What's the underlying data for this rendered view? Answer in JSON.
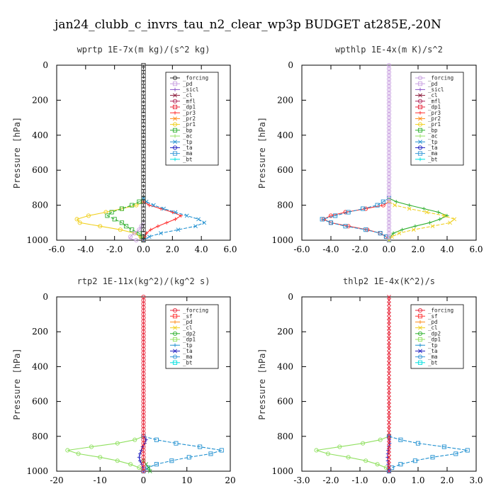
{
  "title": "jan24_clubb_c_invrs_tau_n2_clear_wp3p  BUDGET at285E,-20N",
  "chart_data": [
    {
      "type": "line",
      "title": "wprtp  1E-7x(m kg)/(s^2 kg)",
      "ylabel": "Pressure [hPa]",
      "xlim": [
        -6.0,
        6.0
      ],
      "ylim": [
        1000,
        0
      ],
      "xticks": [
        "-6.0",
        "-4.0",
        "-2.0",
        "0.0",
        "2.0",
        "4.0",
        "6.0"
      ],
      "xtick_values": [
        -6,
        -4,
        -2,
        0,
        2,
        4,
        6
      ],
      "yticks": [
        "0",
        "200",
        "400",
        "600",
        "800",
        "1000"
      ],
      "ytick_values": [
        0,
        200,
        400,
        600,
        800,
        1000
      ],
      "legend": [
        "_forcing",
        "_pd",
        "_sicl",
        "_cl",
        "_mfl",
        "_dp1",
        "_pr3",
        "_pr2",
        "_pr1",
        "_bp",
        "_ac",
        "_tp",
        "_ta",
        "_ma",
        "_bt"
      ],
      "legend_colors": [
        "#333333",
        "#c8a0e0",
        "#8a55c8",
        "#8a1a3a",
        "#b0285a",
        "#e8283c",
        "#ff3030",
        "#ff8c1a",
        "#f0d020",
        "#30b030",
        "#90e060",
        "#2090d0",
        "#2020c0",
        "#3a9ad8",
        "#00e0e0"
      ],
      "series": [
        {
          "color": "#f0d020",
          "pressure": [
            780,
            800,
            820,
            840,
            860,
            880,
            900,
            920,
            940,
            960,
            980,
            1000
          ],
          "x": [
            0.0,
            -0.5,
            -1.5,
            -2.6,
            -3.8,
            -4.6,
            -4.4,
            -3.0,
            -1.6,
            -0.6,
            -0.2,
            0.0
          ]
        },
        {
          "color": "#30b030",
          "pressure": [
            760,
            780,
            800,
            820,
            840,
            860,
            880,
            900,
            920,
            940,
            960,
            980,
            1000
          ],
          "x": [
            0.0,
            -0.3,
            -0.8,
            -1.5,
            -2.2,
            -2.5,
            -2.0,
            -1.5,
            -1.2,
            -0.8,
            -0.3,
            -0.1,
            0.0
          ]
        },
        {
          "color": "#ff3030",
          "pressure": [
            780,
            800,
            820,
            840,
            860,
            880,
            900,
            920,
            940,
            960,
            980,
            1000
          ],
          "x": [
            0.0,
            0.4,
            1.2,
            2.0,
            2.6,
            2.2,
            1.6,
            1.0,
            0.5,
            0.2,
            0.1,
            0.0
          ]
        },
        {
          "color": "#2090d0",
          "pressure": [
            760,
            780,
            800,
            820,
            840,
            860,
            880,
            900,
            920,
            940,
            960,
            980,
            1000
          ],
          "x": [
            0.0,
            0.2,
            0.7,
            1.4,
            2.2,
            3.0,
            3.8,
            4.2,
            3.6,
            2.4,
            1.2,
            0.4,
            0.0
          ]
        },
        {
          "color": "#c8a0e0",
          "pressure": [
            900,
            940,
            970,
            990,
            1000
          ],
          "x": [
            0.0,
            -0.3,
            -0.8,
            -1.0,
            -0.5
          ]
        },
        {
          "color": "#333333",
          "pressure": [
            0,
            100,
            200,
            300,
            400,
            500,
            600,
            700,
            800,
            900,
            1000
          ],
          "x": [
            0,
            0,
            0,
            0,
            0,
            0,
            0,
            0,
            0,
            0,
            0
          ]
        }
      ]
    },
    {
      "type": "line",
      "title": "wpthlp  1E-4x(m K)/s^2",
      "ylabel": "Pressure [hPa]",
      "xlim": [
        -6.0,
        6.0
      ],
      "ylim": [
        1000,
        0
      ],
      "xticks": [
        "-6.0",
        "-4.0",
        "-2.0",
        "0.0",
        "2.0",
        "4.0",
        "6.0"
      ],
      "xtick_values": [
        -6,
        -4,
        -2,
        0,
        2,
        4,
        6
      ],
      "yticks": [
        "0",
        "200",
        "400",
        "600",
        "800",
        "1000"
      ],
      "ytick_values": [
        0,
        200,
        400,
        600,
        800,
        1000
      ],
      "legend": [
        "_forcing",
        "_pd",
        "_sicl",
        "_cl",
        "_mfl",
        "_dp1",
        "_pr3",
        "_pr2",
        "_pr1",
        "_bp",
        "_ac",
        "_tp",
        "_ta",
        "_ma",
        "_bt"
      ],
      "legend_colors": [
        "#c8a0e0",
        "#c8a0e0",
        "#8a55c8",
        "#8a1a3a",
        "#b0285a",
        "#e8283c",
        "#ff3030",
        "#ff8c1a",
        "#f0d020",
        "#30b030",
        "#90e060",
        "#2090d0",
        "#2020c0",
        "#3a9ad8",
        "#00e0e0"
      ],
      "series": [
        {
          "color": "#ff3030",
          "pressure": [
            780,
            800,
            820,
            840,
            860,
            880,
            900,
            920,
            940,
            960,
            980,
            1000
          ],
          "x": [
            0.0,
            -0.4,
            -1.6,
            -3.0,
            -4.0,
            -4.5,
            -4.0,
            -2.8,
            -1.5,
            -0.6,
            -0.2,
            0.0
          ]
        },
        {
          "color": "#2090d0",
          "pressure": [
            760,
            800,
            840,
            880,
            900,
            920,
            940,
            960,
            980,
            1000
          ],
          "x": [
            0.0,
            -0.8,
            -2.8,
            -4.6,
            -4.0,
            -3.0,
            -1.6,
            -0.6,
            -0.2,
            0.0
          ]
        },
        {
          "color": "#30b030",
          "pressure": [
            760,
            780,
            800,
            820,
            840,
            860,
            880,
            900,
            920,
            940,
            960,
            980,
            1000
          ],
          "x": [
            0.0,
            0.5,
            1.4,
            2.4,
            3.4,
            4.0,
            3.5,
            2.8,
            1.8,
            0.9,
            0.3,
            0.1,
            0.0
          ]
        },
        {
          "color": "#f0d020",
          "pressure": [
            780,
            800,
            820,
            840,
            860,
            880,
            900,
            920,
            940,
            960,
            980,
            1000
          ],
          "x": [
            0.0,
            0.4,
            1.4,
            2.6,
            3.8,
            4.5,
            4.2,
            3.0,
            1.7,
            0.7,
            0.2,
            0.0
          ]
        },
        {
          "color": "#c8a0e0",
          "pressure": [
            0,
            100,
            200,
            300,
            400,
            500,
            600,
            700,
            800,
            900,
            1000
          ],
          "x": [
            0,
            0,
            0,
            0,
            0,
            0,
            0,
            0,
            0,
            0,
            0
          ]
        }
      ]
    },
    {
      "type": "line",
      "title": "rtp2  1E-11x(kg^2)/(kg^2 s)",
      "ylabel": "Pressure [hPa]",
      "xlim": [
        -20,
        20
      ],
      "ylim": [
        1000,
        0
      ],
      "xticks": [
        "-20",
        "-10",
        "0",
        "10",
        "20"
      ],
      "xtick_values": [
        -20,
        -10,
        0,
        10,
        20
      ],
      "yticks": [
        "0",
        "200",
        "400",
        "600",
        "800",
        "1000"
      ],
      "ytick_values": [
        0,
        200,
        400,
        600,
        800,
        1000
      ],
      "legend": [
        "_forcing",
        "_sf",
        "_pd",
        "_cl",
        "_dp2",
        "_dp1",
        "_tp",
        "_ta",
        "_ma",
        "_bt"
      ],
      "legend_colors": [
        "#e8283c",
        "#ff3030",
        "#ff8c1a",
        "#f0d020",
        "#30b030",
        "#90e060",
        "#2090d0",
        "#2020c0",
        "#3a9ad8",
        "#00e0e0"
      ],
      "series": [
        {
          "color": "#90e060",
          "pressure": [
            800,
            820,
            840,
            860,
            880,
            900,
            920,
            940,
            960,
            980,
            1000
          ],
          "x": [
            0.0,
            -2.0,
            -6.0,
            -12.0,
            -17.5,
            -15.0,
            -10.0,
            -6.0,
            -3.0,
            -1.0,
            0.0
          ]
        },
        {
          "color": "#2090d0",
          "pressure": [
            800,
            820,
            840,
            860,
            880,
            900,
            920,
            940,
            960,
            980,
            1000
          ],
          "x": [
            0.0,
            3.0,
            7.5,
            13.0,
            18.0,
            15.5,
            10.5,
            6.5,
            3.0,
            1.0,
            0.0
          ]
        },
        {
          "color": "#2020c0",
          "pressure": [
            800,
            820,
            840,
            860,
            880,
            900,
            920,
            940,
            960,
            980,
            1000
          ],
          "x": [
            0.0,
            0.6,
            0.3,
            -0.2,
            -0.5,
            -0.8,
            -1.0,
            -0.8,
            -0.4,
            -0.1,
            0.0
          ]
        },
        {
          "color": "#30b030",
          "pressure": [
            940,
            960,
            980,
            1000
          ],
          "x": [
            0.0,
            0.6,
            1.2,
            1.5
          ]
        },
        {
          "color": "#e8283c",
          "pressure": [
            0,
            100,
            200,
            300,
            400,
            500,
            600,
            700,
            800,
            900,
            1000
          ],
          "x": [
            0,
            0,
            0,
            0,
            0,
            0,
            0,
            0,
            0,
            0,
            0
          ]
        }
      ]
    },
    {
      "type": "line",
      "title": "thlp2  1E-4x(K^2)/s",
      "ylabel": "Pressure [hPa]",
      "xlim": [
        -3.0,
        3.0
      ],
      "ylim": [
        1000,
        0
      ],
      "xticks": [
        "-3.0",
        "-2.0",
        "-1.0",
        "0.0",
        "1.0",
        "2.0",
        "3.0"
      ],
      "xtick_values": [
        -3,
        -2,
        -1,
        0,
        1,
        2,
        3
      ],
      "yticks": [
        "0",
        "200",
        "400",
        "600",
        "800",
        "1000"
      ],
      "ytick_values": [
        0,
        200,
        400,
        600,
        800,
        1000
      ],
      "legend": [
        "_forcing",
        "_sf",
        "_pd",
        "_cl",
        "_dp2",
        "_dp1",
        "_tp",
        "_ta",
        "_ma",
        "_bt"
      ],
      "legend_colors": [
        "#e8283c",
        "#ff3030",
        "#ff8c1a",
        "#f0d020",
        "#30b030",
        "#90e060",
        "#2090d0",
        "#2020c0",
        "#3a9ad8",
        "#00e0e0"
      ],
      "series": [
        {
          "color": "#90e060",
          "pressure": [
            800,
            820,
            840,
            860,
            880,
            900,
            920,
            940,
            960,
            980,
            1000
          ],
          "x": [
            0.0,
            -0.3,
            -0.9,
            -1.7,
            -2.5,
            -2.1,
            -1.4,
            -0.8,
            -0.4,
            -0.1,
            0.0
          ]
        },
        {
          "color": "#2090d0",
          "pressure": [
            800,
            820,
            840,
            860,
            880,
            900,
            920,
            940,
            960,
            980,
            1000
          ],
          "x": [
            0.0,
            0.4,
            1.0,
            1.9,
            2.7,
            2.3,
            1.5,
            0.9,
            0.4,
            0.1,
            0.0
          ]
        },
        {
          "color": "#2020c0",
          "pressure": [
            800,
            840,
            880,
            920,
            960,
            1000
          ],
          "x": [
            0.0,
            0.02,
            -0.03,
            -0.05,
            -0.03,
            0.0
          ]
        },
        {
          "color": "#e8283c",
          "pressure": [
            0,
            100,
            200,
            300,
            400,
            500,
            600,
            700,
            800,
            900,
            1000
          ],
          "x": [
            0,
            0,
            0,
            0,
            0,
            0,
            0,
            0,
            0,
            0,
            0
          ]
        }
      ]
    }
  ]
}
